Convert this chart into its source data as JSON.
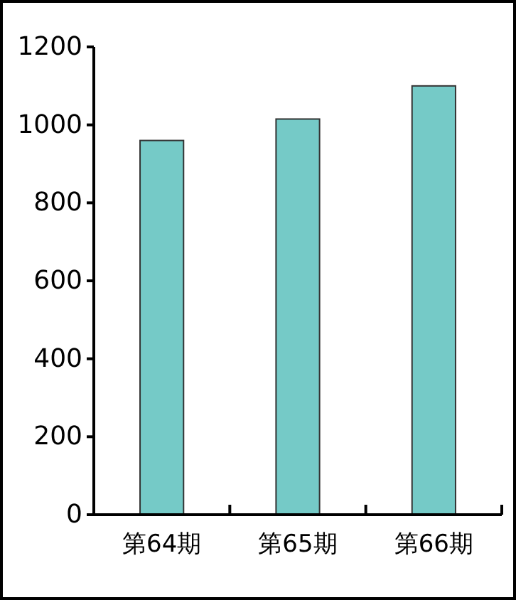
{
  "chart_data": {
    "type": "bar",
    "categories": [
      "第64期",
      "第65期",
      "第66期"
    ],
    "values": [
      960,
      1015,
      1100
    ],
    "color": "#75cac7",
    "ylim": [
      0,
      1200
    ],
    "yticks": [
      0,
      200,
      400,
      600,
      800,
      1000,
      1200
    ],
    "grid": false
  }
}
